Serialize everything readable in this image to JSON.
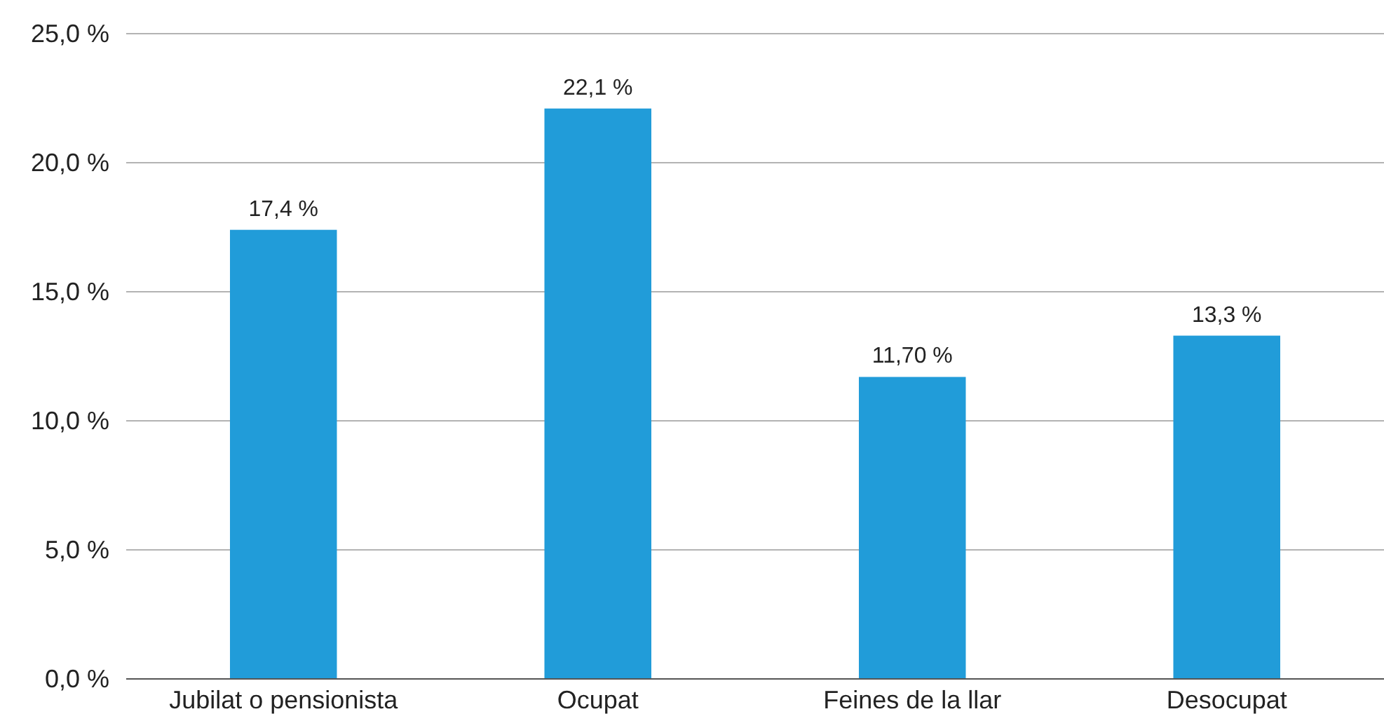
{
  "chart_data": {
    "type": "bar",
    "categories": [
      "Jubilat o pensionista",
      "Ocupat",
      "Feines de la llar",
      "Desocupat"
    ],
    "values": [
      17.4,
      22.1,
      11.7,
      13.3
    ],
    "color": "#219cd9",
    "value_labels": [
      "17,4 %",
      "22,1 %",
      "11,70 %",
      "13,3 %"
    ],
    "ylim": [
      0,
      25
    ],
    "yticks": [
      {
        "value": 0,
        "label": "0,0 %"
      },
      {
        "value": 5,
        "label": "5,0 %"
      },
      {
        "value": 10,
        "label": "10,0 %"
      },
      {
        "value": 15,
        "label": "15,0 %"
      },
      {
        "value": 20,
        "label": "20,0 %"
      },
      {
        "value": 25,
        "label": "25,0 %"
      }
    ],
    "grid": "y"
  }
}
